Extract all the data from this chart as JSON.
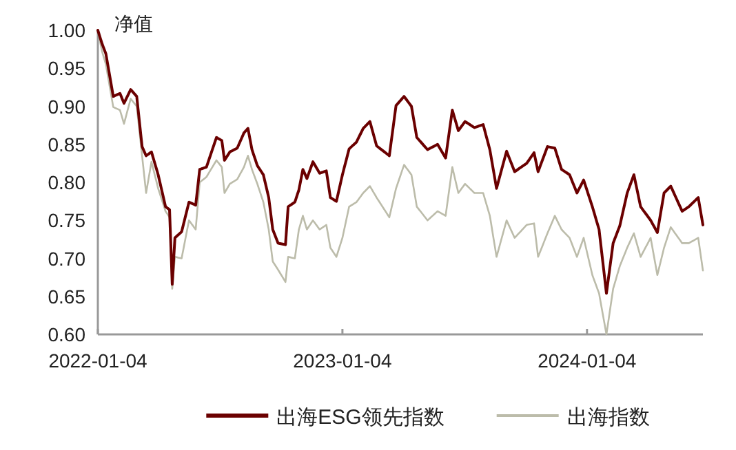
{
  "chart_data": {
    "type": "line",
    "ylabel": "净值",
    "x": [
      "2022-01-04",
      "2022-01-10",
      "2022-01-16",
      "2022-01-27",
      "2022-02-06",
      "2022-02-12",
      "2022-02-22",
      "2022-03-03",
      "2022-03-11",
      "2022-03-17",
      "2022-03-25",
      "2022-04-04",
      "2022-04-15",
      "2022-04-21",
      "2022-04-25",
      "2022-04-29",
      "2022-05-09",
      "2022-05-20",
      "2022-05-30",
      "2022-06-05",
      "2022-06-15",
      "2022-06-30",
      "2022-07-08",
      "2022-07-12",
      "2022-07-20",
      "2022-07-31",
      "2022-08-10",
      "2022-08-16",
      "2022-08-22",
      "2022-08-30",
      "2022-09-08",
      "2022-09-16",
      "2022-09-22",
      "2022-09-30",
      "2022-10-11",
      "2022-10-15",
      "2022-10-25",
      "2022-10-31",
      "2022-11-06",
      "2022-11-12",
      "2022-11-21",
      "2022-12-01",
      "2022-12-11",
      "2022-12-17",
      "2022-12-26",
      "2023-01-04",
      "2023-01-14",
      "2023-01-25",
      "2023-02-04",
      "2023-02-14",
      "2023-02-24",
      "2023-03-15",
      "2023-03-25",
      "2023-04-06",
      "2023-04-17",
      "2023-04-25",
      "2023-05-11",
      "2023-05-26",
      "2023-06-07",
      "2023-06-17",
      "2023-06-26",
      "2023-07-06",
      "2023-07-20",
      "2023-08-02",
      "2023-08-12",
      "2023-08-22",
      "2023-09-06",
      "2023-09-18",
      "2023-10-06",
      "2023-10-17",
      "2023-10-23",
      "2023-11-06",
      "2023-11-17",
      "2023-11-27",
      "2023-12-09",
      "2023-12-20",
      "2023-12-30",
      "2024-01-12",
      "2024-01-22",
      "2024-02-02",
      "2024-02-12",
      "2024-02-22",
      "2024-03-04",
      "2024-03-14",
      "2024-03-24",
      "2024-04-08",
      "2024-04-18",
      "2024-04-28",
      "2024-05-08",
      "2024-05-25",
      "2024-06-04",
      "2024-06-18",
      "2024-06-25"
    ],
    "series": [
      {
        "name": "出海ESG领先指数",
        "color": "#6b0000",
        "values": [
          1.0,
          0.983,
          0.969,
          0.913,
          0.917,
          0.904,
          0.922,
          0.913,
          0.847,
          0.835,
          0.84,
          0.81,
          0.768,
          0.764,
          0.666,
          0.727,
          0.735,
          0.774,
          0.77,
          0.817,
          0.82,
          0.859,
          0.855,
          0.829,
          0.84,
          0.845,
          0.865,
          0.871,
          0.843,
          0.822,
          0.81,
          0.78,
          0.738,
          0.72,
          0.718,
          0.768,
          0.774,
          0.79,
          0.817,
          0.805,
          0.827,
          0.812,
          0.815,
          0.78,
          0.775,
          0.81,
          0.844,
          0.853,
          0.871,
          0.88,
          0.848,
          0.835,
          0.901,
          0.913,
          0.9,
          0.859,
          0.843,
          0.85,
          0.832,
          0.895,
          0.868,
          0.88,
          0.872,
          0.876,
          0.843,
          0.792,
          0.841,
          0.814,
          0.825,
          0.839,
          0.814,
          0.847,
          0.845,
          0.817,
          0.81,
          0.786,
          0.803,
          0.768,
          0.738,
          0.654,
          0.72,
          0.743,
          0.786,
          0.81,
          0.768,
          0.75,
          0.734,
          0.786,
          0.795,
          0.762,
          0.768,
          0.78,
          0.744
        ]
      },
      {
        "name": "出海指数",
        "color": "#bcbcaa",
        "values": [
          1.0,
          0.973,
          0.955,
          0.899,
          0.895,
          0.877,
          0.91,
          0.9,
          0.835,
          0.786,
          0.827,
          0.792,
          0.762,
          0.754,
          0.66,
          0.702,
          0.7,
          0.75,
          0.738,
          0.8,
          0.807,
          0.829,
          0.82,
          0.786,
          0.798,
          0.804,
          0.82,
          0.835,
          0.817,
          0.798,
          0.774,
          0.738,
          0.696,
          0.685,
          0.669,
          0.702,
          0.7,
          0.738,
          0.756,
          0.738,
          0.75,
          0.738,
          0.744,
          0.714,
          0.702,
          0.727,
          0.768,
          0.774,
          0.786,
          0.795,
          0.78,
          0.754,
          0.792,
          0.823,
          0.81,
          0.768,
          0.75,
          0.762,
          0.756,
          0.82,
          0.786,
          0.798,
          0.786,
          0.786,
          0.756,
          0.702,
          0.75,
          0.727,
          0.744,
          0.746,
          0.702,
          0.733,
          0.756,
          0.738,
          0.727,
          0.702,
          0.727,
          0.678,
          0.654,
          0.6,
          0.66,
          0.69,
          0.714,
          0.733,
          0.702,
          0.727,
          0.678,
          0.714,
          0.741,
          0.72,
          0.72,
          0.727,
          0.684
        ]
      }
    ],
    "xlim": [
      "2022-01-04",
      "2024-06-25"
    ],
    "xticks": [
      "2022-01-04",
      "2023-01-04",
      "2024-01-04"
    ],
    "ylim": [
      0.6,
      1.0
    ],
    "yticks": [
      {
        "value": 0.6,
        "label": "0.60"
      },
      {
        "value": 0.65,
        "label": "0.65"
      },
      {
        "value": 0.7,
        "label": "0.70"
      },
      {
        "value": 0.75,
        "label": "0.75"
      },
      {
        "value": 0.8,
        "label": "0.80"
      },
      {
        "value": 0.85,
        "label": "0.85"
      },
      {
        "value": 0.9,
        "label": "0.90"
      },
      {
        "value": 0.95,
        "label": "0.95"
      },
      {
        "value": 1.0,
        "label": "1.00"
      }
    ],
    "grid": false,
    "legend": "bottom",
    "marker": "none",
    "line_style": "solid"
  }
}
